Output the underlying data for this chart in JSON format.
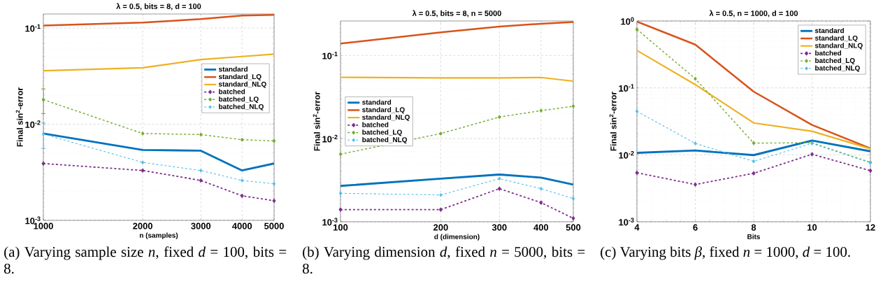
{
  "chart_data": [
    {
      "type": "line",
      "title": "λ = 0.5, bits = 8, d = 100",
      "xlabel": "n (samples)",
      "ylabel": "Final sin$^{2}$-error",
      "log": "xy",
      "grid": true,
      "legend": "right",
      "x": [
        1000,
        2000,
        3000,
        4000,
        5000
      ],
      "xlim": [
        1000,
        5000
      ],
      "xticks": [
        1000,
        2000,
        3000,
        4000,
        5000
      ],
      "ylim": [
        0.001,
        0.14
      ],
      "yticks": [
        {
          "value": 0.001,
          "label": "10$^{-3}$"
        },
        {
          "value": 0.01,
          "label": "10$^{-2}$"
        },
        {
          "value": 0.1,
          "label": "10$^{-1}$"
        }
      ],
      "series": [
        {
          "name": "standard",
          "color": "#0072bd",
          "line_style": "solid",
          "marker": "none",
          "values": [
            0.008,
            0.0054,
            0.0053,
            0.0033,
            0.0039
          ]
        },
        {
          "name": "standard_LQ",
          "color": "#d95319",
          "line_style": "solid",
          "marker": "none",
          "values": [
            0.106,
            0.114,
            0.124,
            0.135,
            0.137
          ]
        },
        {
          "name": "standard_NLQ",
          "color": "#edb120",
          "line_style": "solid",
          "marker": "none",
          "values": [
            0.036,
            0.0386,
            0.047,
            0.0506,
            0.0535
          ]
        },
        {
          "name": "batched",
          "color": "#7e2f8e",
          "line_style": "dashed",
          "marker": "diamond",
          "values": [
            0.0039,
            0.0033,
            0.0026,
            0.0018,
            0.0016
          ]
        },
        {
          "name": "batched_LQ",
          "color": "#77ac30",
          "line_style": "dashed",
          "marker": "diamond",
          "values": [
            0.018,
            0.008,
            0.0078,
            0.0069,
            0.0067
          ],
          "errors": [
            [
              0.0129,
              0.0233
            ],
            null,
            null,
            null,
            null
          ]
        },
        {
          "name": "batched_NLQ",
          "color": "#4dbeee",
          "line_style": "dashed",
          "marker": "diamond",
          "values": [
            0.0079,
            0.004,
            0.0033,
            0.0026,
            0.0024
          ],
          "errors": [
            [
              0.0056,
              0.0103
            ],
            null,
            null,
            null,
            null
          ]
        }
      ],
      "annotations": [
        "(a) Varying sample size *n*, fixed *d* = 100, bits = 8."
      ]
    },
    {
      "type": "line",
      "title": "λ = 0.5, bits = 8, n = 5000",
      "xlabel": "d (dimension)",
      "ylabel": "Final sin$^{2}$-error",
      "log": "xy",
      "grid": true,
      "legend": "left",
      "x": [
        100,
        200,
        300,
        400,
        500
      ],
      "xlim": [
        100,
        500
      ],
      "xticks": [
        100,
        200,
        300,
        400,
        500
      ],
      "ylim": [
        0.001,
        0.26
      ],
      "yticks": [
        {
          "value": 0.001,
          "label": "10$^{-3}$"
        },
        {
          "value": 0.01,
          "label": "10$^{-2}$"
        },
        {
          "value": 0.1,
          "label": "10$^{-1}$"
        }
      ],
      "series": [
        {
          "name": "standard",
          "color": "#0072bd",
          "line_style": "solid",
          "marker": "none",
          "values": [
            0.0027,
            0.0033,
            0.0037,
            0.0034,
            0.0028
          ]
        },
        {
          "name": "standard_LQ",
          "color": "#d95319",
          "line_style": "solid",
          "marker": "none",
          "values": [
            0.139,
            0.19,
            0.223,
            0.241,
            0.252
          ]
        },
        {
          "name": "standard_NLQ",
          "color": "#edb120",
          "line_style": "solid",
          "marker": "none",
          "values": [
            0.0547,
            0.0537,
            0.0537,
            0.0544,
            0.0491
          ]
        },
        {
          "name": "batched",
          "color": "#7e2f8e",
          "line_style": "dashed",
          "marker": "diamond",
          "values": [
            0.0014,
            0.0014,
            0.0025,
            0.0017,
            0.0011
          ]
        },
        {
          "name": "batched_LQ",
          "color": "#77ac30",
          "line_style": "dashed",
          "marker": "diamond",
          "values": [
            0.0065,
            0.0115,
            0.0182,
            0.0217,
            0.0245
          ]
        },
        {
          "name": "batched_NLQ",
          "color": "#4dbeee",
          "line_style": "dashed",
          "marker": "diamond",
          "values": [
            0.0022,
            0.0021,
            0.0033,
            0.0025,
            0.0019
          ]
        }
      ],
      "annotations": [
        "(b) Varying dimension *d*, fixed *n* = 5000, bits = 8."
      ]
    },
    {
      "type": "line",
      "title": "λ = 0.5, n = 1000, d = 100",
      "xlabel": "Bits",
      "ylabel": "Final sin$^{2}$-error",
      "log": "y",
      "grid": true,
      "legend": "top right",
      "x": [
        4,
        6,
        8,
        10,
        12
      ],
      "xlim": [
        4,
        12
      ],
      "xticks": [
        4,
        6,
        8,
        10,
        12
      ],
      "ylim": [
        0.001,
        1
      ],
      "yticks": [
        {
          "value": 0.001,
          "label": "10$^{-3}$"
        },
        {
          "value": 0.01,
          "label": "10$^{-2}$"
        },
        {
          "value": 0.1,
          "label": "10$^{-1}$"
        },
        {
          "value": 1,
          "label": "10$^{0}$"
        }
      ],
      "series": [
        {
          "name": "standard",
          "color": "#0072bd",
          "line_style": "solid",
          "marker": "none",
          "values": [
            0.0107,
            0.0116,
            0.0099,
            0.0164,
            0.0113
          ]
        },
        {
          "name": "standard_LQ",
          "color": "#d95319",
          "line_style": "solid",
          "marker": "none",
          "values": [
            0.98,
            0.444,
            0.088,
            0.028,
            0.0125
          ]
        },
        {
          "name": "standard_NLQ",
          "color": "#edb120",
          "line_style": "solid",
          "marker": "none",
          "values": [
            0.363,
            0.112,
            0.03,
            0.0225,
            0.0123
          ]
        },
        {
          "name": "batched",
          "color": "#7e2f8e",
          "line_style": "dashed",
          "marker": "diamond",
          "values": [
            0.0054,
            0.0036,
            0.0053,
            0.0102,
            0.0058
          ]
        },
        {
          "name": "batched_LQ",
          "color": "#77ac30",
          "line_style": "dashed",
          "marker": "diamond",
          "values": [
            0.75,
            0.137,
            0.015,
            0.0151,
            0.0077
          ]
        },
        {
          "name": "batched_NLQ",
          "color": "#4dbeee",
          "line_style": "dashed",
          "marker": "diamond",
          "values": [
            0.0448,
            0.0148,
            0.008,
            0.0148,
            0.0076
          ]
        }
      ],
      "annotations": [
        "(c) Varying bits *β*, fixed *n* = 1000, *d* = 100."
      ]
    }
  ]
}
